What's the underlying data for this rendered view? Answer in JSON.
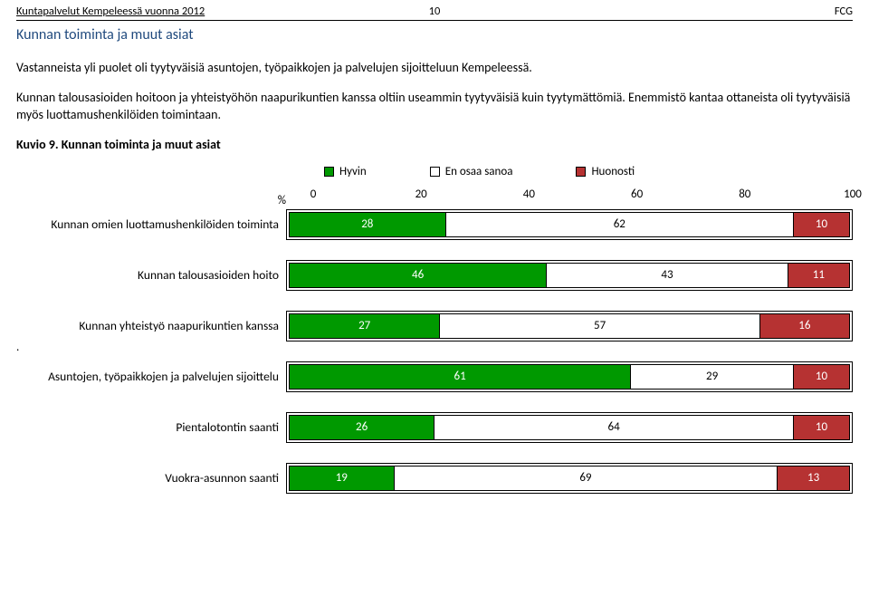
{
  "header": {
    "left": "Kuntapalvelut Kempeleessä vuonna 2012",
    "page_number": "10",
    "right": "FCG"
  },
  "section_title": "Kunnan toiminta ja muut asiat",
  "section_title_color": "#1f497d",
  "paragraphs": [
    "Vastanneista yli puolet oli tyytyväisiä  asuntojen, työpaikkojen ja palvelujen sijoitteluun Kempeleessä.",
    "Kunnan talousasioiden hoitoon ja yhteistyöhön naapurikuntien kanssa oltiin useammin tyytyväisiä kuin tyytymättömiä. Enemmistö kantaa ottaneista oli tyytyväisiä myös luottamushenkilöiden toimintaan."
  ],
  "kuvio_title": "Kuvio 9. Kunnan toiminta ja muut asiat",
  "chart": {
    "type": "stacked-bar-horizontal",
    "percent_symbol": "%",
    "legend": [
      {
        "label": "Hyvin",
        "fill": "#009900",
        "border": "#000000",
        "text_color": "#ffffff"
      },
      {
        "label": "En osaa sanoa",
        "fill": "#ffffff",
        "border": "#000000",
        "text_color": "#000000"
      },
      {
        "label": "Huonosti",
        "fill": "#b63232",
        "border": "#000000",
        "text_color": "#ffffff"
      }
    ],
    "xlim": [
      0,
      100
    ],
    "ticks": [
      0,
      20,
      40,
      60,
      80,
      100
    ],
    "rows": [
      {
        "label": "Kunnan omien luottamushenkilöiden toiminta",
        "values": [
          28,
          62,
          10
        ]
      },
      {
        "label": "Kunnan talousasioiden hoito",
        "values": [
          46,
          43,
          11
        ]
      },
      {
        "label": "Kunnan yhteistyö naapurikuntien kanssa",
        "values": [
          27,
          57,
          16
        ],
        "leading_dot": "."
      },
      {
        "label": "Asuntojen, työpaikkojen ja palvelujen sijoittelu",
        "values": [
          61,
          29,
          10
        ]
      },
      {
        "label": "Pientalotontin saanti",
        "values": [
          26,
          64,
          10
        ]
      },
      {
        "label": "Vuokra-asunnon saanti",
        "values": [
          19,
          69,
          13
        ]
      }
    ]
  }
}
